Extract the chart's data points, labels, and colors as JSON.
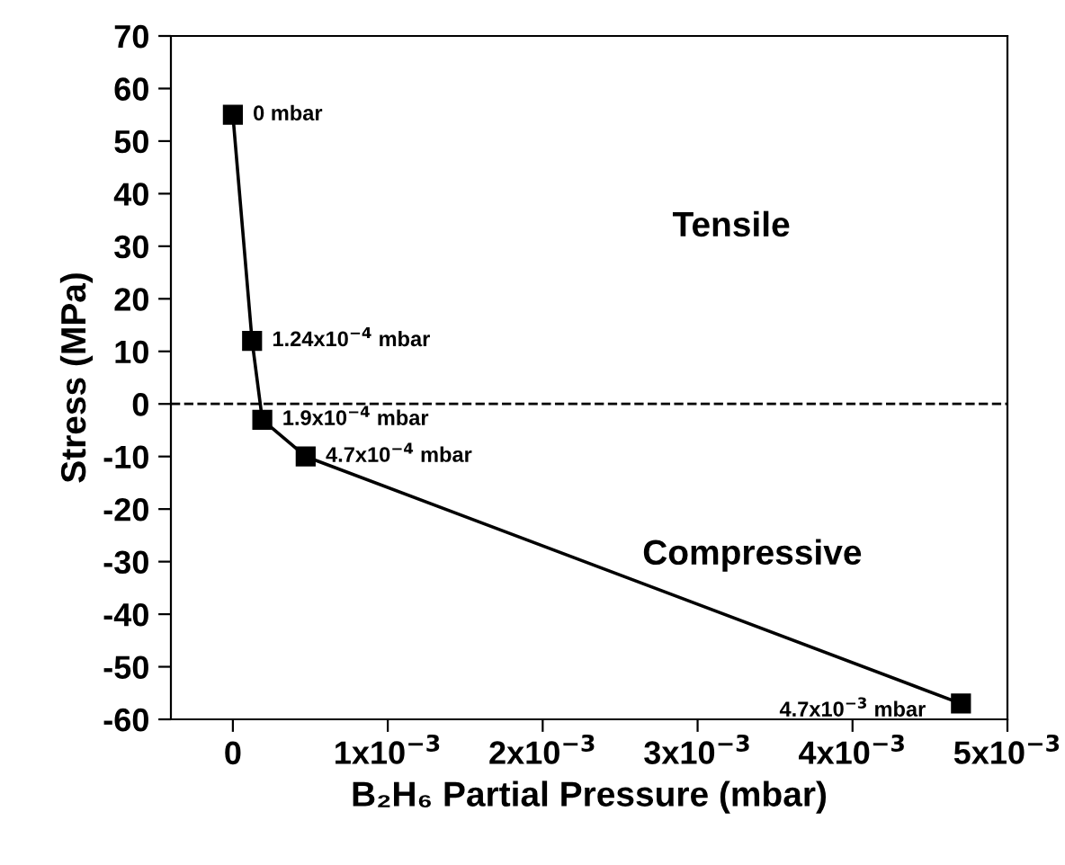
{
  "chart_data": {
    "type": "line",
    "xlabel": "B₂H₆ Partial Pressure (mbar)",
    "ylabel": "Stress (MPa)",
    "x": [
      0,
      0.000124,
      0.00019,
      0.00047,
      0.0047
    ],
    "series": [
      {
        "color": "#000000",
        "values": [
          55,
          12,
          -3,
          -10,
          -57
        ]
      }
    ],
    "marker": "square",
    "line_style": "solid",
    "grid": false,
    "legend": false,
    "xlim": [
      -0.0004,
      0.005
    ],
    "xticks": [
      0,
      {
        "value": 0.001,
        "label": "1x10$^{−3}$"
      },
      {
        "value": 0.002,
        "label": "2x10$^{−3}$"
      },
      {
        "value": 0.003,
        "label": "3x10$^{−3}$"
      },
      {
        "value": 0.004,
        "label": "4x10$^{−3}$"
      },
      {
        "value": 0.005,
        "label": "5x10$^{−3}$"
      }
    ],
    "ylim": [
      -60,
      70
    ],
    "yticks": [
      -60,
      -50,
      -40,
      -30,
      -20,
      -10,
      0,
      10,
      20,
      30,
      40,
      50,
      60,
      70
    ],
    "ref_lines": [
      {
        "axis": "y",
        "value": 0,
        "color": "#000000",
        "line_style": "dashed"
      }
    ],
    "annotations": [
      {
        "text": "0 mbar",
        "x": 0,
        "y": 55
      },
      {
        "text": "1.24x10$^{−4}$ mbar",
        "x": 0.000124,
        "y": 12
      },
      {
        "text": "1.9x10$^{−4}$ mbar",
        "x": 0.00019,
        "y": -3
      },
      {
        "text": "4.7x10$^{−4}$ mbar",
        "x": 0.00047,
        "y": -10
      },
      {
        "text": "4.7x10$^{−3}$ mbar",
        "x": 0.0047,
        "y": -57
      },
      "Tensile",
      "Compressive"
    ]
  }
}
